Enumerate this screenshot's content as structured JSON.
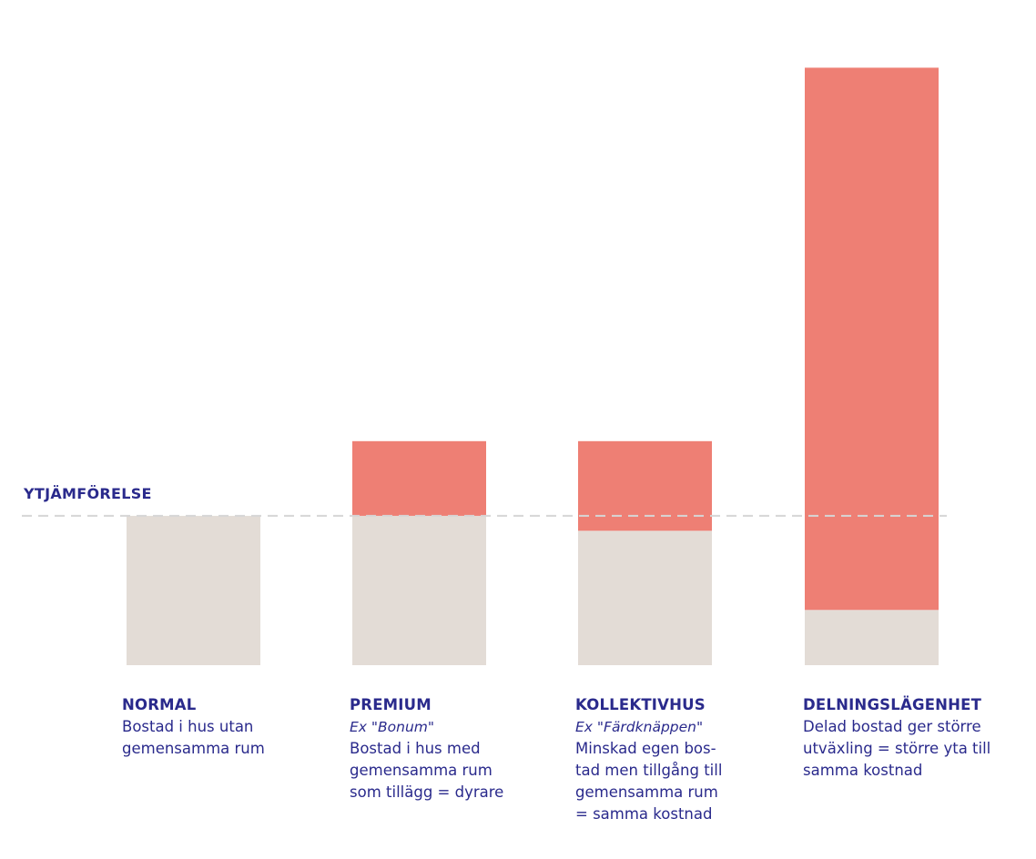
{
  "chart_data": {
    "type": "bar",
    "stacked": true,
    "reference_line": {
      "label": "YTJÄMFÖRELSE",
      "value": 100,
      "style": "dashed"
    },
    "categories": [
      "NORMAL",
      "PREMIUM",
      "KOLLEKTIVHUS",
      "DELNINGSLÄGENHET"
    ],
    "series": [
      {
        "key": "base",
        "values": [
          100,
          100,
          90,
          37
        ]
      },
      {
        "key": "extra",
        "values": [
          0,
          50,
          60,
          363
        ]
      }
    ],
    "ylim": [
      0,
      410
    ],
    "colors": {
      "base": "#e3dcd6",
      "extra": "#ee7f74",
      "text": "#2a2a8c",
      "reference_line": "#d6d6d6"
    },
    "grid": false,
    "axes_visible": false
  },
  "captions": [
    {
      "title": "NORMAL",
      "example": "",
      "lines": [
        "Bostad i hus utan",
        "gemensamma rum"
      ]
    },
    {
      "title": "PREMIUM",
      "example": "Ex \"Bonum\"",
      "lines": [
        "Bostad i hus med",
        "gemensamma rum",
        "som tillägg  = dyrare"
      ]
    },
    {
      "title": "KOLLEKTIVHUS",
      "example": "Ex \"Färdknäppen\"",
      "lines": [
        "Minskad egen bos-",
        "tad men tillgång till",
        "gemensamma rum",
        "= samma kostnad"
      ]
    },
    {
      "title": "DELNINGSLÄGENHET",
      "example": "",
      "lines": [
        "Delad bostad ger större",
        "utväxling = större yta till",
        "samma kostnad"
      ]
    }
  ]
}
